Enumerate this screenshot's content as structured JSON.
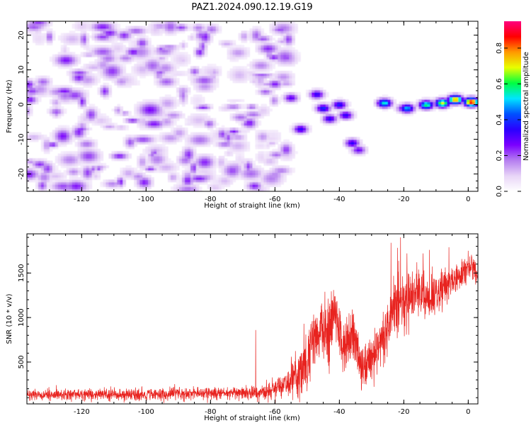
{
  "title": "PAZ1.2024.090.12.19.G19",
  "chart_data": [
    {
      "type": "heatmap",
      "xlabel": "Height of straight line (km)",
      "ylabel": "Frequency (Hz)",
      "xlim": [
        -137,
        3
      ],
      "ylim": [
        -25,
        24
      ],
      "xticks": [
        "-120",
        "-100",
        "-80",
        "-60",
        "-40",
        "-20",
        "0"
      ],
      "yticks": [
        "20",
        "10",
        "0",
        "-10",
        "-20"
      ],
      "colorbar": {
        "label": "Normalized spectral amplitude",
        "range": [
          0,
          0.95
        ],
        "ticks": [
          "0.0",
          "0.2",
          "0.4",
          "0.6",
          "0.8"
        ],
        "colormap": [
          "#ffffff",
          "#e8d5f7",
          "#b57ef0",
          "#7b00ff",
          "#2a00ff",
          "#0050ff",
          "#00e5ff",
          "#00ff40",
          "#e8ff00",
          "#ff9900",
          "#ff0000",
          "#ff007f"
        ]
      },
      "features": [
        {
          "x": -136,
          "freq": 1.5,
          "amp": 0.25
        },
        {
          "x": -60,
          "freq": 6,
          "amp": 0.25
        },
        {
          "x": -55,
          "freq": 2,
          "amp": 0.3
        },
        {
          "x": -52,
          "freq": -7,
          "amp": 0.35
        },
        {
          "x": -47,
          "freq": 3,
          "amp": 0.35
        },
        {
          "x": -45,
          "freq": -1,
          "amp": 0.4
        },
        {
          "x": -43,
          "freq": -4,
          "amp": 0.35
        },
        {
          "x": -40,
          "freq": 0,
          "amp": 0.38
        },
        {
          "x": -38,
          "freq": -3,
          "amp": 0.35
        },
        {
          "x": -36,
          "freq": -11,
          "amp": 0.35
        },
        {
          "x": -34,
          "freq": -13,
          "amp": 0.28
        },
        {
          "x": -26,
          "freq": 0.5,
          "amp": 0.55
        },
        {
          "x": -20,
          "freq": -1,
          "amp": 0.3
        },
        {
          "x": -19,
          "freq": -1,
          "amp": 0.5
        },
        {
          "x": -13,
          "freq": 0,
          "amp": 0.6
        },
        {
          "x": -8,
          "freq": 0.5,
          "amp": 0.7
        },
        {
          "x": -4,
          "freq": 1.5,
          "amp": 0.8
        },
        {
          "x": 1,
          "freq": 0.8,
          "amp": 0.9
        }
      ]
    },
    {
      "type": "line",
      "xlabel": "Height of straight line (km)",
      "ylabel": "SNR (10 * v/v)",
      "xlim": [
        -137,
        3
      ],
      "ylim": [
        30,
        1940
      ],
      "xticks": [
        "-120",
        "-100",
        "-80",
        "-60",
        "-40",
        "-20",
        "0"
      ],
      "yticks": [
        "500",
        "1000",
        "1500"
      ],
      "color": "#e8231f",
      "series": [
        {
          "x": [
            -137,
            -120,
            -100,
            -80,
            -70,
            -62,
            -58,
            -55,
            -52,
            -50,
            -48,
            -45,
            -43,
            -41,
            -39,
            -37,
            -35,
            -33,
            -31,
            -29,
            -27,
            -25,
            -23,
            -21,
            -19,
            -17,
            -15,
            -13,
            -11,
            -9,
            -7,
            -5,
            -3,
            -1,
            1,
            3
          ],
          "y": [
            130,
            135,
            140,
            150,
            155,
            170,
            230,
            320,
            420,
            520,
            760,
            880,
            860,
            960,
            650,
            780,
            720,
            420,
            480,
            620,
            720,
            860,
            1080,
            1200,
            1150,
            1250,
            1300,
            1180,
            1260,
            1320,
            1350,
            1400,
            1480,
            1520,
            1580,
            1450
          ],
          "amp": [
            60,
            60,
            60,
            65,
            70,
            90,
            120,
            180,
            260,
            320,
            350,
            330,
            300,
            300,
            300,
            250,
            250,
            250,
            230,
            230,
            260,
            300,
            350,
            320,
            300,
            280,
            270,
            250,
            230,
            200,
            180,
            160,
            140,
            130,
            110,
            100
          ],
          "spikes": [
            [
              -66,
              860
            ],
            [
              -51,
              930
            ],
            [
              -42,
              1170
            ],
            [
              -36,
              1090
            ],
            [
              -24,
              1840
            ],
            [
              -21,
              1900
            ],
            [
              -19,
              1720
            ],
            [
              -14,
              1720
            ],
            [
              -12,
              1760
            ],
            [
              -6,
              1790
            ],
            [
              0,
              1750
            ]
          ]
        }
      ]
    }
  ]
}
